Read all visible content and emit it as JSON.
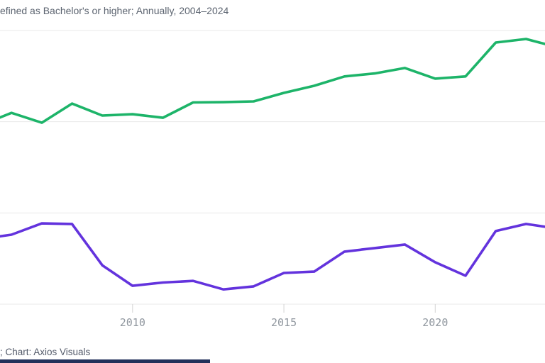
{
  "header": {
    "subtitle": "efined as Bachelor's or higher; Annually, 2004–2024"
  },
  "footer": {
    "credit": "; Chart: Axios Visuals"
  },
  "colors": {
    "background": "#ffffff",
    "subtitle_text": "#5c6470",
    "footer_text": "#545b6a",
    "gridline": "#e9e9e9",
    "tick": "#d4d4d4",
    "tick_label": "#8f969e",
    "bottom_bar": "#22305a"
  },
  "chart_data": {
    "type": "line",
    "title": "cropped out of frame (subtitle fragment visible: 'efined as Bachelor's or higher; Annually, 2004–2024')",
    "xlabel": "",
    "ylabel": "",
    "legend": "cropped out of frame",
    "grid": "horizontal",
    "x_ticks": [
      {
        "year": 2010,
        "label": "2010"
      },
      {
        "year": 2015,
        "label": "2015"
      },
      {
        "year": 2020,
        "label": "2020"
      }
    ],
    "x_visible_range": [
      2005.6,
      2023.6
    ],
    "y_axis_note": "y-axis tick labels are cropped out of the frame; series values below are percent of the visible plot height (0 = bottom axis line, 100 = top gridline)",
    "ylim": [
      0,
      100
    ],
    "series": [
      {
        "name": "green-series",
        "color": "#1db469",
        "points": [
          [
            2005,
            65.5
          ],
          [
            2006,
            69.9
          ],
          [
            2007,
            66.3
          ],
          [
            2008,
            73.3
          ],
          [
            2009,
            68.9
          ],
          [
            2010,
            69.4
          ],
          [
            2011,
            68.1
          ],
          [
            2012,
            73.7
          ],
          [
            2013,
            73.8
          ],
          [
            2014,
            74.1
          ],
          [
            2015,
            77.2
          ],
          [
            2016,
            79.8
          ],
          [
            2017,
            83.2
          ],
          [
            2018,
            84.3
          ],
          [
            2019,
            86.3
          ],
          [
            2020,
            82.4
          ],
          [
            2021,
            83.2
          ],
          [
            2022,
            95.6
          ],
          [
            2023,
            96.9
          ],
          [
            2024,
            94.0
          ]
        ]
      },
      {
        "name": "purple-series",
        "color": "#6333dd",
        "points": [
          [
            2005,
            23.8
          ],
          [
            2006,
            25.4
          ],
          [
            2007,
            29.5
          ],
          [
            2008,
            29.3
          ],
          [
            2009,
            14.2
          ],
          [
            2010,
            6.7
          ],
          [
            2011,
            7.9
          ],
          [
            2012,
            8.5
          ],
          [
            2013,
            5.4
          ],
          [
            2014,
            6.5
          ],
          [
            2015,
            11.4
          ],
          [
            2016,
            11.9
          ],
          [
            2017,
            19.2
          ],
          [
            2018,
            20.5
          ],
          [
            2019,
            21.8
          ],
          [
            2020,
            15.3
          ],
          [
            2021,
            10.4
          ],
          [
            2022,
            26.7
          ],
          [
            2023,
            29.3
          ],
          [
            2024,
            27.7
          ]
        ]
      }
    ]
  }
}
